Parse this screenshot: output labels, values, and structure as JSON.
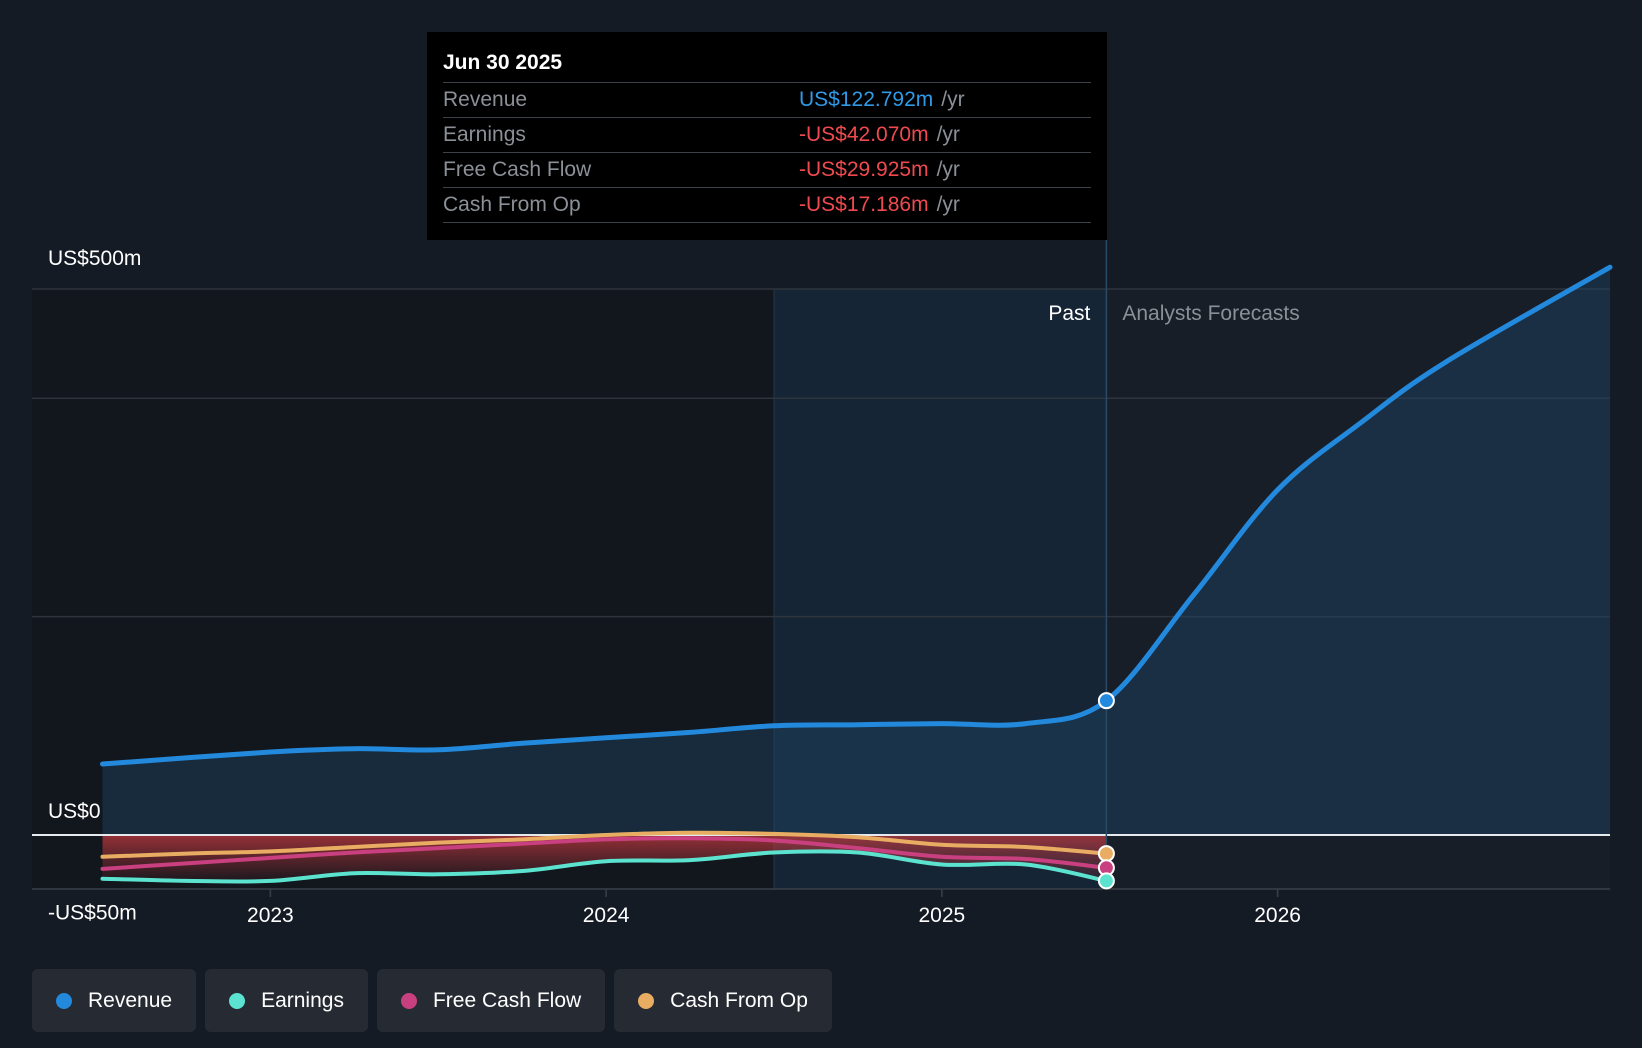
{
  "tooltip": {
    "date": "Jun 30 2025",
    "rows": [
      {
        "label": "Revenue",
        "value": "US$122.792m",
        "unit": "/yr",
        "color": "#2f9ae6"
      },
      {
        "label": "Earnings",
        "value": "-US$42.070m",
        "unit": "/yr",
        "color": "#ef4a4f"
      },
      {
        "label": "Free Cash Flow",
        "value": "-US$29.925m",
        "unit": "/yr",
        "color": "#ef4a4f"
      },
      {
        "label": "Cash From Op",
        "value": "-US$17.186m",
        "unit": "/yr",
        "color": "#ef4a4f"
      }
    ]
  },
  "legend": [
    {
      "label": "Revenue",
      "color": "#2389dc"
    },
    {
      "label": "Earnings",
      "color": "#5ce3cf"
    },
    {
      "label": "Free Cash Flow",
      "color": "#c8407f"
    },
    {
      "label": "Cash From Op",
      "color": "#e8ad62"
    }
  ],
  "chart_data": {
    "type": "line",
    "title": "",
    "past_label": "Past",
    "forecast_label": "Analysts Forecasts",
    "y_axis_labels": [
      {
        "value": 500,
        "label": "US$500m"
      },
      {
        "value": 0,
        "label": "US$0"
      },
      {
        "value": -50,
        "label": "-US$50m"
      }
    ],
    "x_ticks": [
      {
        "value": 2023.0,
        "label": "2023"
      },
      {
        "value": 2024.0,
        "label": "2024"
      },
      {
        "value": 2025.0,
        "label": "2025"
      },
      {
        "value": 2026.0,
        "label": "2026"
      }
    ],
    "xlim": [
      2022.29,
      2026.99
    ],
    "ylim": [
      -50,
      500
    ],
    "gridlines": [
      500,
      400,
      200
    ],
    "past_shade_range": [
      2024.5,
      2025.49
    ],
    "current_x": 2025.49,
    "series": [
      {
        "name": "Revenue",
        "color": "#2389dc",
        "points": [
          [
            2022.5,
            65
          ],
          [
            2023.0,
            76
          ],
          [
            2023.25,
            79
          ],
          [
            2023.5,
            78
          ],
          [
            2023.75,
            84
          ],
          [
            2024.0,
            89
          ],
          [
            2024.25,
            94
          ],
          [
            2024.5,
            100
          ],
          [
            2024.75,
            101
          ],
          [
            2025.0,
            102
          ],
          [
            2025.25,
            102
          ],
          [
            2025.49,
            123
          ],
          [
            2025.75,
            220
          ],
          [
            2026.0,
            316
          ],
          [
            2026.25,
            378
          ],
          [
            2026.5,
            433
          ],
          [
            2026.99,
            520
          ]
        ]
      },
      {
        "name": "Earnings",
        "color": "#5ce3cf",
        "points": [
          [
            2022.5,
            -40
          ],
          [
            2022.75,
            -42
          ],
          [
            2023.0,
            -42
          ],
          [
            2023.25,
            -35
          ],
          [
            2023.5,
            -36
          ],
          [
            2023.75,
            -33
          ],
          [
            2024.0,
            -24
          ],
          [
            2024.25,
            -23
          ],
          [
            2024.5,
            -16
          ],
          [
            2024.75,
            -16
          ],
          [
            2025.0,
            -27
          ],
          [
            2025.25,
            -27
          ],
          [
            2025.49,
            -42
          ]
        ]
      },
      {
        "name": "Free Cash Flow",
        "color": "#c8407f",
        "points": [
          [
            2022.5,
            -31
          ],
          [
            2022.75,
            -26
          ],
          [
            2023.0,
            -21
          ],
          [
            2023.25,
            -16
          ],
          [
            2023.5,
            -12
          ],
          [
            2023.75,
            -8
          ],
          [
            2024.0,
            -4
          ],
          [
            2024.25,
            -3
          ],
          [
            2024.5,
            -5
          ],
          [
            2024.75,
            -12
          ],
          [
            2025.0,
            -20
          ],
          [
            2025.25,
            -22
          ],
          [
            2025.49,
            -30
          ]
        ]
      },
      {
        "name": "Cash From Op",
        "color": "#e8ad62",
        "points": [
          [
            2022.5,
            -20
          ],
          [
            2022.75,
            -17
          ],
          [
            2023.0,
            -15
          ],
          [
            2023.25,
            -11
          ],
          [
            2023.5,
            -7
          ],
          [
            2023.75,
            -4
          ],
          [
            2024.0,
            0
          ],
          [
            2024.25,
            2
          ],
          [
            2024.5,
            1
          ],
          [
            2024.75,
            -2
          ],
          [
            2025.0,
            -9
          ],
          [
            2025.25,
            -11
          ],
          [
            2025.49,
            -17
          ]
        ]
      }
    ]
  }
}
